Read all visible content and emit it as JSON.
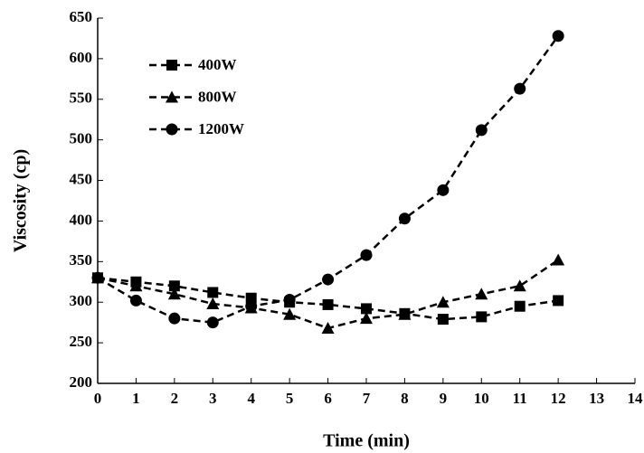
{
  "chart_data": {
    "type": "line",
    "x_label": "Time (min)",
    "y_label": "Viscosity (cp)",
    "x": [
      0,
      1,
      2,
      3,
      4,
      5,
      6,
      7,
      8,
      9,
      10,
      11,
      12
    ],
    "series": [
      {
        "name": "400W",
        "color": "#000000",
        "marker": "square",
        "values": [
          330,
          325,
          320,
          312,
          305,
          300,
          297,
          292,
          286,
          279,
          282,
          295,
          302
        ]
      },
      {
        "name": "800W",
        "color": "#000000",
        "marker": "triangle",
        "values": [
          330,
          320,
          310,
          298,
          293,
          285,
          268,
          280,
          285,
          300,
          310,
          320,
          352
        ]
      },
      {
        "name": "1200W",
        "color": "#000000",
        "marker": "circle",
        "values": [
          330,
          302,
          280,
          275,
          295,
          303,
          328,
          358,
          403,
          438,
          512,
          563,
          628
        ]
      }
    ],
    "xlim": [
      0,
      14
    ],
    "xticks": [
      0,
      1,
      2,
      3,
      4,
      5,
      6,
      7,
      8,
      9,
      10,
      11,
      12,
      13,
      14
    ],
    "ylim": [
      200,
      650
    ],
    "yticks": [
      200,
      250,
      300,
      350,
      400,
      450,
      500,
      550,
      600,
      650
    ],
    "legend": "upper-left",
    "grid": false
  }
}
